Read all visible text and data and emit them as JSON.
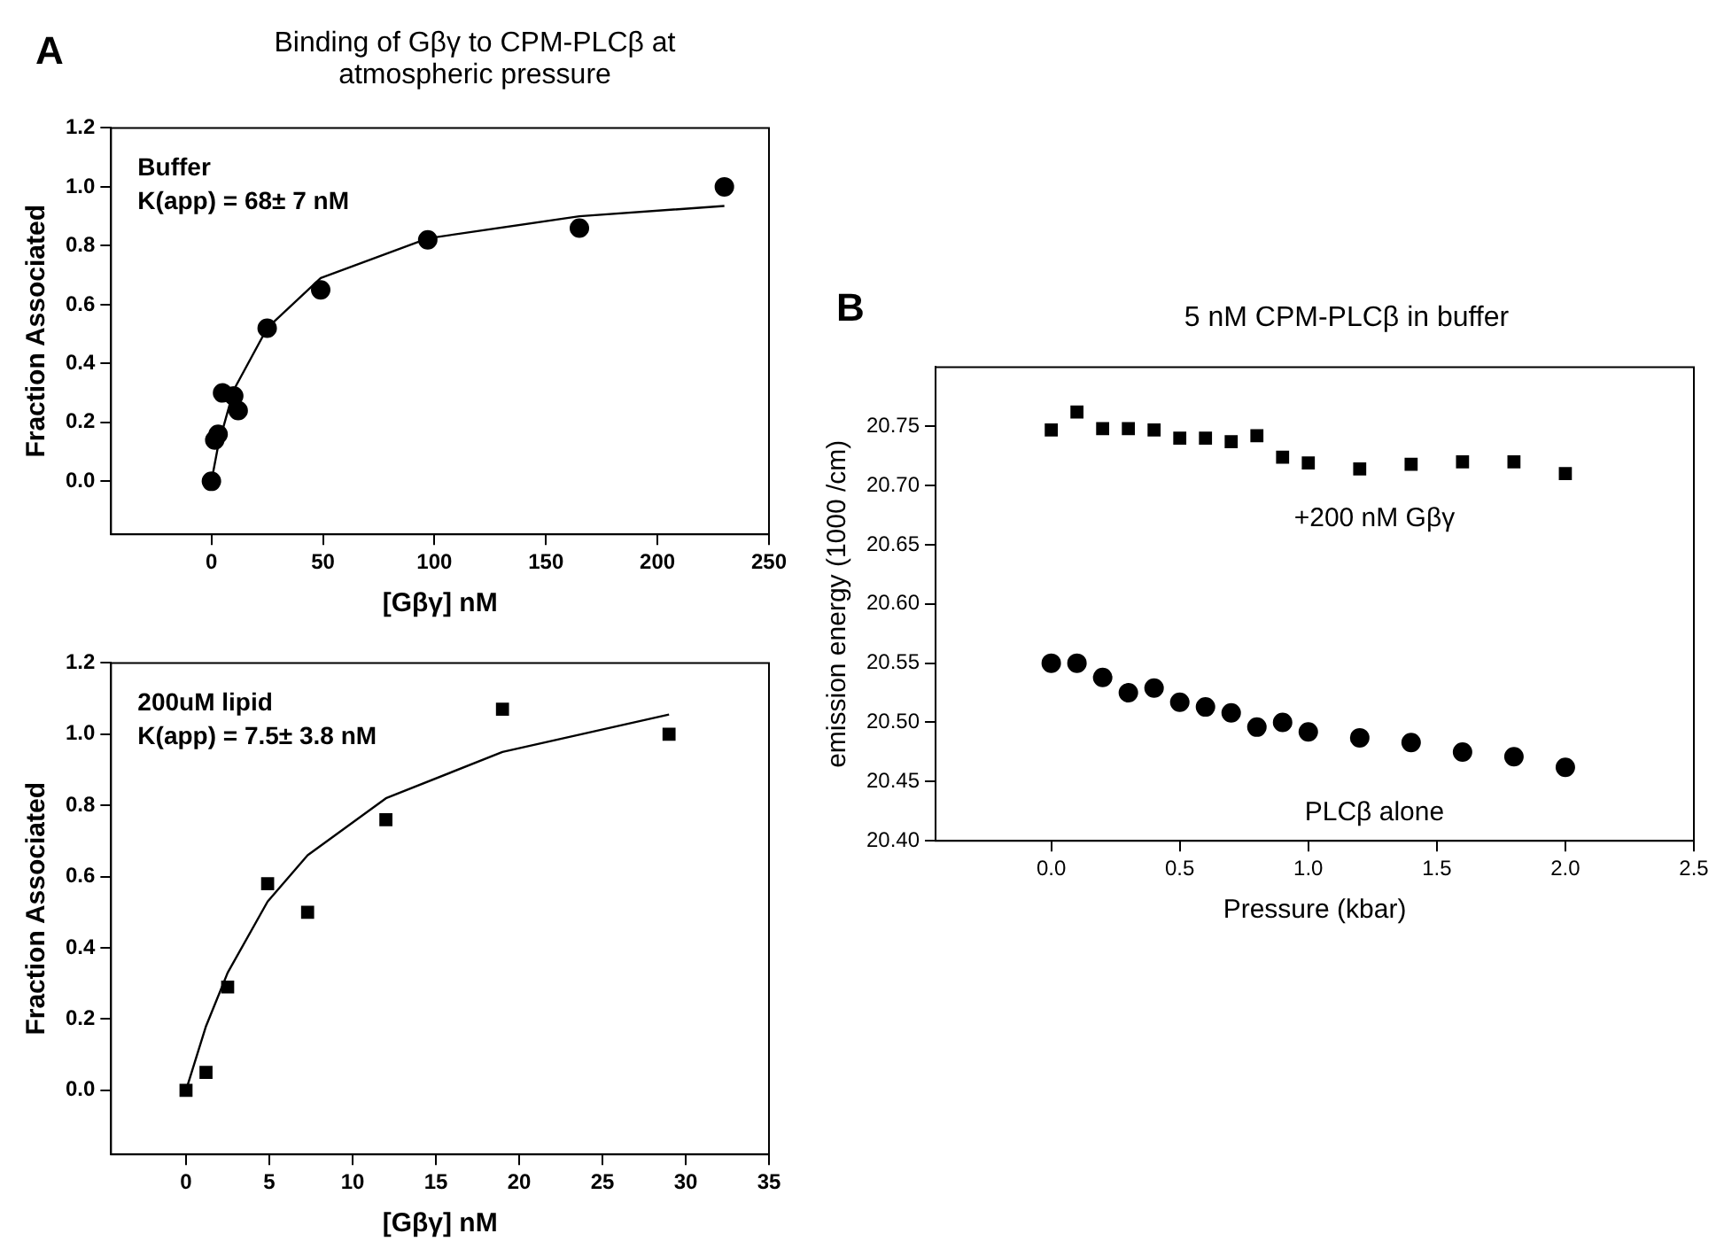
{
  "chart_data": [
    {
      "type": "scatter",
      "title": "Binding of Gβγ to CPM-PLCβ at atmospheric pressure",
      "xlabel": "[Gβγ] nM",
      "ylabel": "Fraction Associated",
      "annotations": [
        "A",
        "Buffer",
        "K(app) = 68± 7 nM"
      ],
      "xlim": [
        -45,
        250
      ],
      "xticks": [
        0,
        50,
        100,
        150,
        200,
        250
      ],
      "ylim": [
        -0.18,
        1.2
      ],
      "yticks": [
        {
          "value": 0,
          "label": "0.0"
        },
        {
          "value": 0.2,
          "label": "0.2"
        },
        {
          "value": 0.4,
          "label": "0.4"
        },
        {
          "value": 0.6,
          "label": "0.6"
        },
        {
          "value": 0.8,
          "label": "0.8"
        },
        {
          "value": 1,
          "label": "1.0"
        },
        {
          "value": 1.2,
          "label": "1.2"
        }
      ],
      "grid": false,
      "legend": false,
      "series": [
        {
          "marker": "circle",
          "color": "#000000",
          "x": [
            0,
            1.5,
            3,
            5,
            10,
            12,
            25,
            49,
            97,
            165,
            230
          ],
          "values": [
            0,
            0.14,
            0.16,
            0.3,
            0.29,
            0.24,
            0.52,
            0.65,
            0.82,
            0.86,
            1.0
          ]
        },
        {
          "type": "line",
          "marker": "none",
          "color": "#000000",
          "x": [
            0,
            3,
            10,
            25,
            49,
            97,
            165,
            230
          ],
          "values": [
            0,
            0.12,
            0.31,
            0.52,
            0.69,
            0.825,
            0.9,
            0.935
          ]
        }
      ]
    },
    {
      "type": "scatter",
      "xlabel": "[Gβγ] nM",
      "ylabel": "Fraction Associated",
      "annotations": [
        "200uM lipid",
        "K(app) = 7.5± 3.8 nM"
      ],
      "xlim": [
        -4.5,
        35
      ],
      "xticks": [
        0,
        5,
        10,
        15,
        20,
        25,
        30,
        35
      ],
      "ylim": [
        -0.18,
        1.2
      ],
      "yticks": [
        {
          "value": 0,
          "label": "0.0"
        },
        {
          "value": 0.2,
          "label": "0.2"
        },
        {
          "value": 0.4,
          "label": "0.4"
        },
        {
          "value": 0.6,
          "label": "0.6"
        },
        {
          "value": 0.8,
          "label": "0.8"
        },
        {
          "value": 1,
          "label": "1.0"
        },
        {
          "value": 1.2,
          "label": "1.2"
        }
      ],
      "grid": false,
      "legend": false,
      "series": [
        {
          "marker": "square",
          "color": "#000000",
          "x": [
            0,
            1.2,
            2.5,
            4.9,
            7.3,
            12,
            19,
            29
          ],
          "values": [
            0,
            0.05,
            0.29,
            0.58,
            0.5,
            0.76,
            1.07,
            1.0
          ]
        },
        {
          "type": "line",
          "marker": "none",
          "color": "#000000",
          "x": [
            0,
            1.2,
            2.5,
            4.9,
            7.3,
            12,
            19,
            29
          ],
          "values": [
            0,
            0.18,
            0.33,
            0.53,
            0.66,
            0.82,
            0.95,
            1.055
          ]
        }
      ]
    },
    {
      "type": "scatter",
      "title": "5 nM CPM-PLCβ in buffer",
      "xlabel": "Pressure (kbar)",
      "ylabel": "emission energy (1000 /cm)",
      "annotations": [
        "B"
      ],
      "xlim": [
        -0.45,
        2.5
      ],
      "xticks": [
        {
          "value": 0,
          "label": "0.0"
        },
        {
          "value": 0.5,
          "label": "0.5"
        },
        {
          "value": 1,
          "label": "1.0"
        },
        {
          "value": 1.5,
          "label": "1.5"
        },
        {
          "value": 2,
          "label": "2.0"
        },
        {
          "value": 2.5,
          "label": "2.5"
        }
      ],
      "ylim": [
        20.4,
        20.8
      ],
      "yticks": [
        {
          "value": 20.4,
          "label": "20.40"
        },
        {
          "value": 20.45,
          "label": "20.45"
        },
        {
          "value": 20.5,
          "label": "20.50"
        },
        {
          "value": 20.55,
          "label": "20.55"
        },
        {
          "value": 20.6,
          "label": "20.60"
        },
        {
          "value": 20.65,
          "label": "20.65"
        },
        {
          "value": 20.7,
          "label": "20.70"
        },
        {
          "value": 20.75,
          "label": "20.75"
        }
      ],
      "grid": false,
      "legend": false,
      "series": [
        {
          "name": "+200 nM Gβγ",
          "marker": "square",
          "color": "#000000",
          "x": [
            0,
            0.1,
            0.2,
            0.3,
            0.4,
            0.5,
            0.6,
            0.7,
            0.8,
            0.9,
            1.0,
            1.2,
            1.4,
            1.6,
            1.8,
            2.0
          ],
          "values": [
            20.747,
            20.762,
            20.748,
            20.748,
            20.747,
            20.74,
            20.74,
            20.737,
            20.742,
            20.724,
            20.719,
            20.714,
            20.718,
            20.72,
            20.72,
            20.71
          ]
        },
        {
          "name": "PLCβ alone",
          "marker": "circle",
          "color": "#000000",
          "x": [
            0,
            0.1,
            0.2,
            0.3,
            0.4,
            0.5,
            0.6,
            0.7,
            0.8,
            0.9,
            1.0,
            1.2,
            1.4,
            1.6,
            1.8,
            2.0
          ],
          "values": [
            20.55,
            20.55,
            20.538,
            20.525,
            20.529,
            20.517,
            20.513,
            20.508,
            20.496,
            20.5,
            20.492,
            20.487,
            20.483,
            20.475,
            20.471,
            20.462
          ]
        }
      ]
    }
  ]
}
